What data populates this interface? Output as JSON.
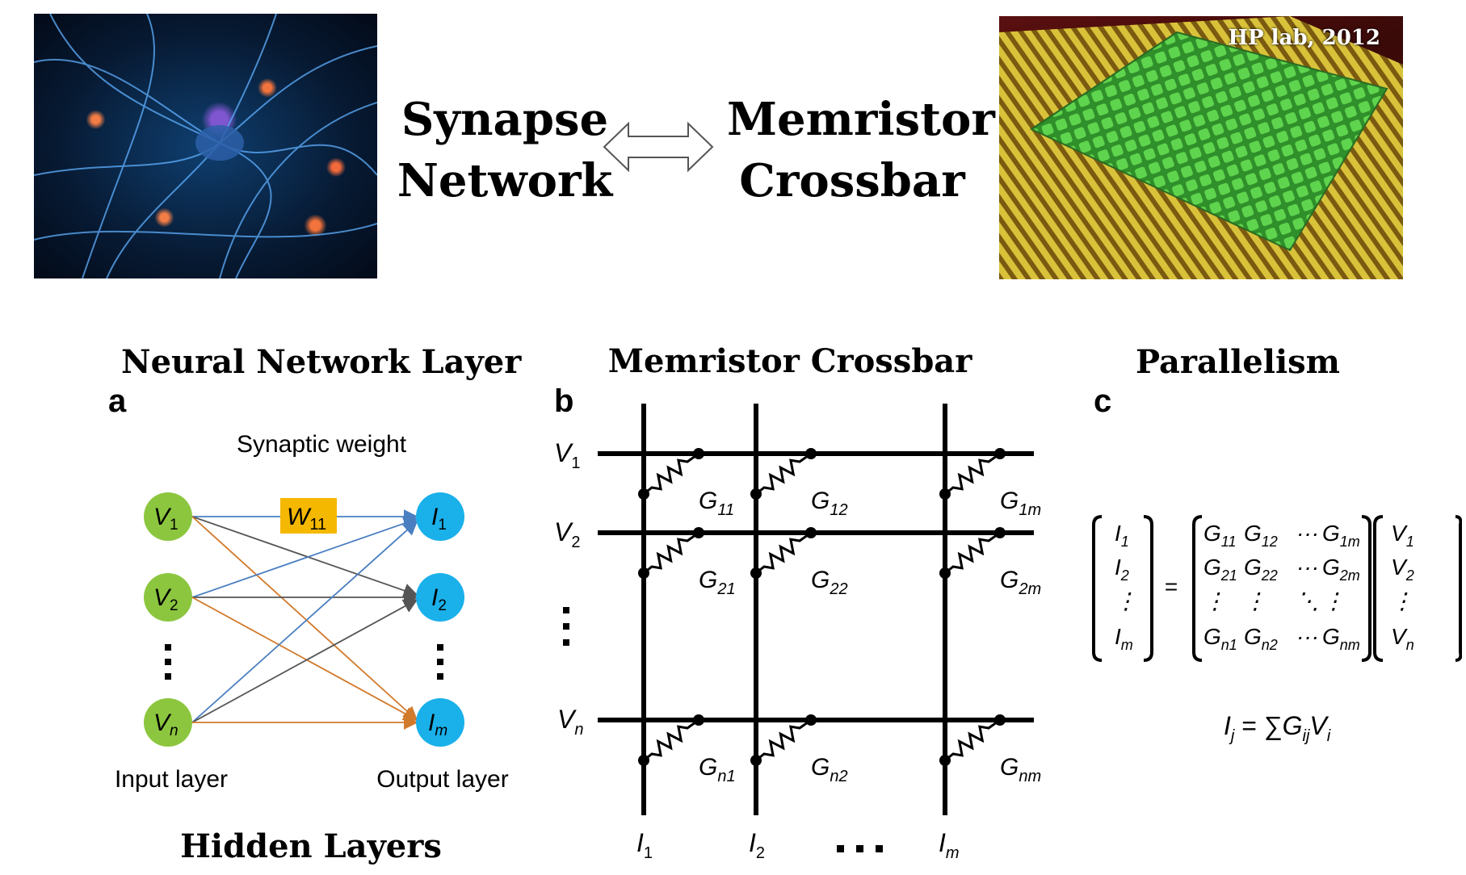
{
  "top": {
    "left_title_line1": "Synapse",
    "left_title_line2": "Network",
    "right_title_line1": "Memristor",
    "right_title_line2": "Crossbar",
    "photo_credit": "HP lab, 2012"
  },
  "sections": {
    "a_title": "Neural Network Layer",
    "b_title": "Memristor Crossbar",
    "c_title": "Parallelism",
    "a_letter": "a",
    "b_letter": "b",
    "c_letter": "c",
    "bottom_caption": "Hidden Layers"
  },
  "panel_a": {
    "synaptic_label": "Synaptic weight",
    "weight_label": "W",
    "weight_sub": "11",
    "inputs": [
      {
        "name": "V",
        "sub": "1"
      },
      {
        "name": "V",
        "sub": "2"
      },
      {
        "name": "V",
        "sub": "n"
      }
    ],
    "outputs": [
      {
        "name": "I",
        "sub": "1"
      },
      {
        "name": "I",
        "sub": "2"
      },
      {
        "name": "I",
        "sub": "m"
      }
    ],
    "input_layer_label": "Input layer",
    "output_layer_label": "Output layer",
    "colors": {
      "input_node": "#8cc63f",
      "output_node": "#1ab0ea",
      "weight_box": "#f5b800",
      "from_v1": "#4a7fc1",
      "from_v2": "#d27a2c",
      "from_vn": "#4a7fc1",
      "gray": "#666666"
    }
  },
  "panel_b": {
    "rows": [
      {
        "name": "V",
        "sub": "1"
      },
      {
        "name": "V",
        "sub": "2"
      },
      {
        "name": "V",
        "sub": "n"
      }
    ],
    "columns": [
      {
        "name": "I",
        "sub": "1"
      },
      {
        "name": "I",
        "sub": "2"
      },
      {
        "name": "I",
        "sub": "m"
      }
    ],
    "conductances": [
      [
        "11",
        "12",
        "1m"
      ],
      [
        "21",
        "22",
        "2m"
      ],
      [
        "n1",
        "n2",
        "nm"
      ]
    ],
    "g_symbol": "G",
    "ellipsis_h": "• • •",
    "ellipsis_v": "⋮"
  },
  "panel_c": {
    "lhs": [
      {
        "name": "I",
        "sub": "1"
      },
      {
        "name": "I",
        "sub": "2"
      },
      {
        "name": "⋮",
        "sub": ""
      },
      {
        "name": "I",
        "sub": "m"
      }
    ],
    "equals": "=",
    "matrix": [
      [
        "G11",
        "G12",
        "···",
        "G1m"
      ],
      [
        "G21",
        "G22",
        "···",
        "G2m"
      ],
      [
        "⋮",
        "⋮",
        "⋱",
        "⋮"
      ],
      [
        "Gn1",
        "Gn2",
        "···",
        "Gnm"
      ]
    ],
    "vector": [
      {
        "name": "V",
        "sub": "1"
      },
      {
        "name": "V",
        "sub": "2"
      },
      {
        "name": "⋮",
        "sub": ""
      },
      {
        "name": "V",
        "sub": "n"
      }
    ],
    "formula_lhs": "I",
    "formula_lhs_sub": "j",
    "formula_eq": " = ∑",
    "formula_g": "G",
    "formula_g_sub": "ij",
    "formula_v": "V",
    "formula_v_sub": "i"
  }
}
